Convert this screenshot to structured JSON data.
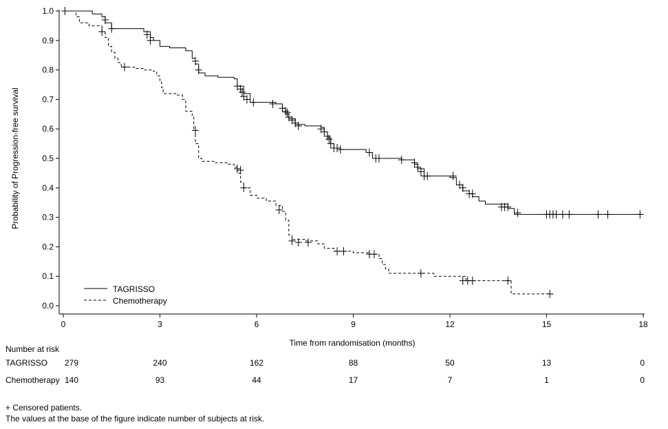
{
  "chart_data": {
    "type": "line",
    "subtype": "kaplan-meier",
    "title": "",
    "xlabel": "Time from randomisation (months)",
    "ylabel": "Probability of Progression-free survival",
    "xlim": [
      0,
      18
    ],
    "ylim": [
      0,
      1
    ],
    "xticks": [
      "0",
      "3",
      "6",
      "9",
      "12",
      "15",
      "18"
    ],
    "yticks": [
      "0.0",
      "0.1",
      "0.2",
      "0.3",
      "0.4",
      "0.5",
      "0.6",
      "0.7",
      "0.8",
      "0.9",
      "1.0"
    ],
    "grid": false,
    "legend_position": "bottom-left",
    "censor_marker": "+",
    "series": [
      {
        "name": "TAGRISSO",
        "line_style": "solid",
        "color": "#000000",
        "steps": [
          [
            0,
            1.0
          ],
          [
            0.9,
            0.99
          ],
          [
            1.2,
            0.98
          ],
          [
            1.3,
            0.96
          ],
          [
            1.5,
            0.94
          ],
          [
            2.5,
            0.93
          ],
          [
            2.7,
            0.91
          ],
          [
            2.8,
            0.9
          ],
          [
            3.0,
            0.88
          ],
          [
            3.3,
            0.875
          ],
          [
            3.8,
            0.865
          ],
          [
            4.0,
            0.84
          ],
          [
            4.1,
            0.82
          ],
          [
            4.2,
            0.79
          ],
          [
            4.4,
            0.78
          ],
          [
            4.8,
            0.775
          ],
          [
            5.3,
            0.77
          ],
          [
            5.4,
            0.745
          ],
          [
            5.6,
            0.72
          ],
          [
            5.8,
            0.69
          ],
          [
            6.6,
            0.685
          ],
          [
            6.8,
            0.67
          ],
          [
            6.9,
            0.65
          ],
          [
            7.0,
            0.635
          ],
          [
            7.2,
            0.615
          ],
          [
            7.5,
            0.61
          ],
          [
            8.0,
            0.605
          ],
          [
            8.1,
            0.59
          ],
          [
            8.2,
            0.57
          ],
          [
            8.3,
            0.55
          ],
          [
            8.4,
            0.535
          ],
          [
            8.6,
            0.53
          ],
          [
            9.4,
            0.52
          ],
          [
            9.6,
            0.5
          ],
          [
            10.5,
            0.495
          ],
          [
            10.9,
            0.48
          ],
          [
            11.0,
            0.465
          ],
          [
            11.2,
            0.44
          ],
          [
            12.0,
            0.435
          ],
          [
            12.2,
            0.41
          ],
          [
            12.4,
            0.39
          ],
          [
            12.6,
            0.38
          ],
          [
            12.7,
            0.37
          ],
          [
            12.9,
            0.355
          ],
          [
            13.1,
            0.345
          ],
          [
            13.6,
            0.345
          ],
          [
            13.8,
            0.33
          ],
          [
            14.0,
            0.31
          ],
          [
            18.0,
            0.31
          ]
        ],
        "censored": [
          [
            0.05,
            1.0
          ],
          [
            1.3,
            0.97
          ],
          [
            1.5,
            0.94
          ],
          [
            2.6,
            0.92
          ],
          [
            2.7,
            0.9
          ],
          [
            4.1,
            0.83
          ],
          [
            4.2,
            0.8
          ],
          [
            5.4,
            0.745
          ],
          [
            5.5,
            0.735
          ],
          [
            5.55,
            0.725
          ],
          [
            5.6,
            0.71
          ],
          [
            5.7,
            0.7
          ],
          [
            5.9,
            0.69
          ],
          [
            6.5,
            0.685
          ],
          [
            6.8,
            0.67
          ],
          [
            6.9,
            0.66
          ],
          [
            6.95,
            0.655
          ],
          [
            7.0,
            0.64
          ],
          [
            7.1,
            0.63
          ],
          [
            7.2,
            0.62
          ],
          [
            7.3,
            0.61
          ],
          [
            8.0,
            0.6
          ],
          [
            8.1,
            0.59
          ],
          [
            8.2,
            0.575
          ],
          [
            8.25,
            0.565
          ],
          [
            8.3,
            0.55
          ],
          [
            8.4,
            0.535
          ],
          [
            8.5,
            0.535
          ],
          [
            8.6,
            0.53
          ],
          [
            9.5,
            0.52
          ],
          [
            9.7,
            0.5
          ],
          [
            9.8,
            0.5
          ],
          [
            10.5,
            0.495
          ],
          [
            10.9,
            0.485
          ],
          [
            11.0,
            0.47
          ],
          [
            11.1,
            0.455
          ],
          [
            11.2,
            0.44
          ],
          [
            11.3,
            0.44
          ],
          [
            12.1,
            0.44
          ],
          [
            12.3,
            0.41
          ],
          [
            12.4,
            0.4
          ],
          [
            12.6,
            0.38
          ],
          [
            12.7,
            0.38
          ],
          [
            13.6,
            0.335
          ],
          [
            13.7,
            0.335
          ],
          [
            13.8,
            0.335
          ],
          [
            14.1,
            0.315
          ],
          [
            15.0,
            0.31
          ],
          [
            15.1,
            0.31
          ],
          [
            15.2,
            0.31
          ],
          [
            15.3,
            0.31
          ],
          [
            15.5,
            0.31
          ],
          [
            15.7,
            0.31
          ],
          [
            16.6,
            0.31
          ],
          [
            16.9,
            0.31
          ],
          [
            17.9,
            0.31
          ]
        ]
      },
      {
        "name": "Chemotherapy",
        "line_style": "dashed",
        "color": "#000000",
        "steps": [
          [
            0,
            1.0
          ],
          [
            0.4,
            0.98
          ],
          [
            0.5,
            0.96
          ],
          [
            0.8,
            0.95
          ],
          [
            1.2,
            0.93
          ],
          [
            1.3,
            0.91
          ],
          [
            1.4,
            0.88
          ],
          [
            1.5,
            0.86
          ],
          [
            1.6,
            0.84
          ],
          [
            1.7,
            0.825
          ],
          [
            1.8,
            0.81
          ],
          [
            2.2,
            0.805
          ],
          [
            2.5,
            0.8
          ],
          [
            2.8,
            0.795
          ],
          [
            2.9,
            0.78
          ],
          [
            3.0,
            0.76
          ],
          [
            3.05,
            0.74
          ],
          [
            3.1,
            0.72
          ],
          [
            3.5,
            0.715
          ],
          [
            3.7,
            0.7
          ],
          [
            3.8,
            0.66
          ],
          [
            4.0,
            0.64
          ],
          [
            4.05,
            0.6
          ],
          [
            4.1,
            0.55
          ],
          [
            4.2,
            0.5
          ],
          [
            4.3,
            0.49
          ],
          [
            4.7,
            0.485
          ],
          [
            5.1,
            0.48
          ],
          [
            5.3,
            0.47
          ],
          [
            5.4,
            0.45
          ],
          [
            5.5,
            0.42
          ],
          [
            5.6,
            0.4
          ],
          [
            5.8,
            0.375
          ],
          [
            6.0,
            0.365
          ],
          [
            6.3,
            0.355
          ],
          [
            6.6,
            0.34
          ],
          [
            6.8,
            0.32
          ],
          [
            6.9,
            0.29
          ],
          [
            7.0,
            0.24
          ],
          [
            7.1,
            0.225
          ],
          [
            7.5,
            0.22
          ],
          [
            7.9,
            0.21
          ],
          [
            8.1,
            0.195
          ],
          [
            8.4,
            0.185
          ],
          [
            9.0,
            0.18
          ],
          [
            9.5,
            0.175
          ],
          [
            9.8,
            0.16
          ],
          [
            9.9,
            0.14
          ],
          [
            10.0,
            0.125
          ],
          [
            10.1,
            0.11
          ],
          [
            11.5,
            0.1
          ],
          [
            12.5,
            0.085
          ],
          [
            13.0,
            0.085
          ],
          [
            13.9,
            0.04
          ],
          [
            15.2,
            0.04
          ]
        ],
        "censored": [
          [
            1.2,
            0.93
          ],
          [
            1.9,
            0.81
          ],
          [
            4.1,
            0.595
          ],
          [
            5.4,
            0.465
          ],
          [
            5.5,
            0.46
          ],
          [
            5.6,
            0.4
          ],
          [
            6.7,
            0.325
          ],
          [
            7.1,
            0.22
          ],
          [
            7.3,
            0.215
          ],
          [
            7.6,
            0.215
          ],
          [
            8.5,
            0.185
          ],
          [
            8.7,
            0.185
          ],
          [
            9.5,
            0.175
          ],
          [
            9.65,
            0.175
          ],
          [
            11.1,
            0.11
          ],
          [
            12.4,
            0.085
          ],
          [
            12.55,
            0.085
          ],
          [
            12.7,
            0.085
          ],
          [
            13.8,
            0.085
          ],
          [
            15.1,
            0.04
          ]
        ]
      }
    ]
  },
  "risk_table": {
    "heading": "Number at risk",
    "times": [
      0,
      3,
      6,
      9,
      12,
      15,
      18
    ],
    "rows": [
      {
        "label": "TAGRISSO",
        "values": [
          "279",
          "240",
          "162",
          "88",
          "50",
          "13",
          "0"
        ]
      },
      {
        "label": "Chemotherapy",
        "values": [
          "140",
          "93",
          "44",
          "17",
          "7",
          "1",
          "0"
        ]
      }
    ]
  },
  "footnotes": {
    "censored_note": "+ Censored patients.",
    "risk_note": "The values at the base of the figure indicate number of subjects at risk."
  }
}
